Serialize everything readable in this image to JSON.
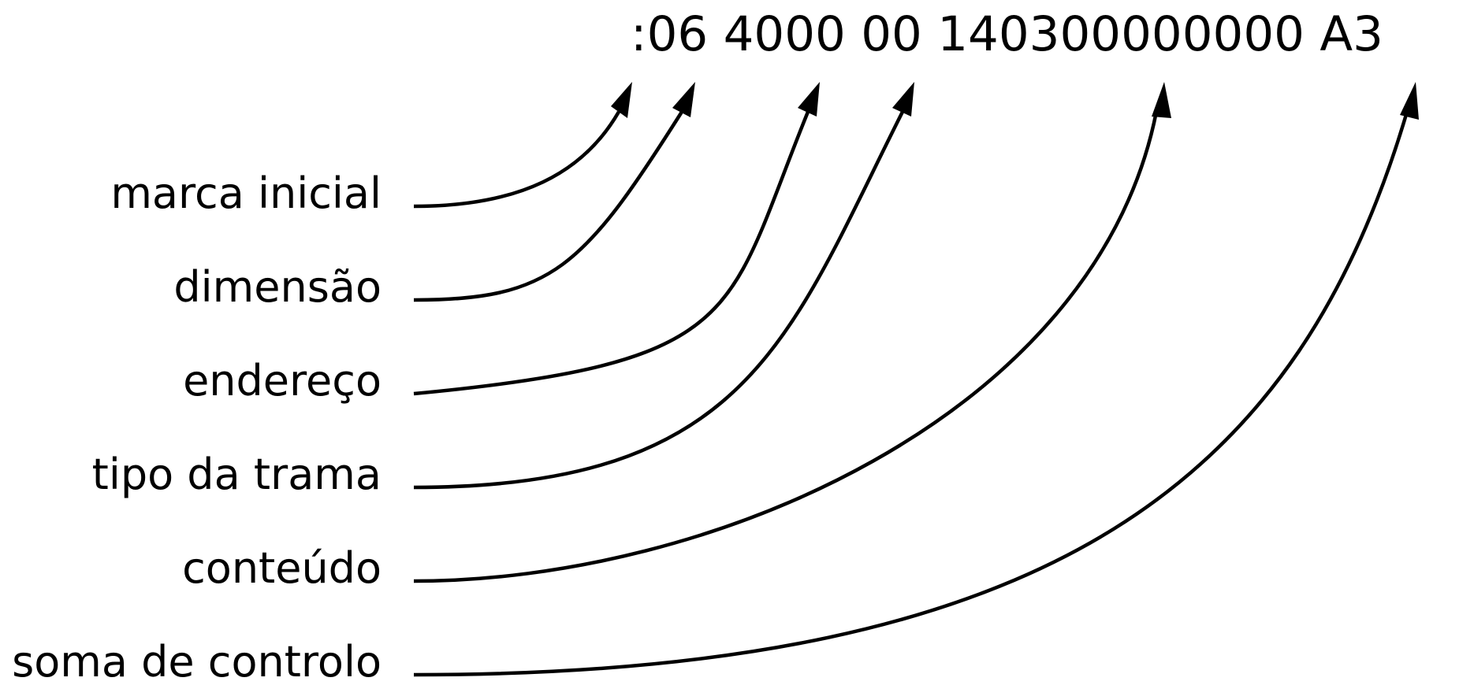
{
  "record": {
    "start_mark": ":",
    "length": "06",
    "address": "4000",
    "record_type": "00",
    "data": "140300000000",
    "checksum": "A3"
  },
  "labels": {
    "start_mark": "marca inicial",
    "length": "dimensão",
    "address": "endereço",
    "record_type": "tipo da trama",
    "data": "conteúdo",
    "checksum": "soma de controlo"
  }
}
